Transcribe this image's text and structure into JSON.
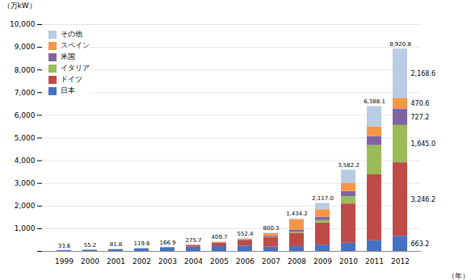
{
  "chart_data": {
    "type": "bar",
    "stacked": true,
    "categories": [
      "1999",
      "2000",
      "2001",
      "2002",
      "2003",
      "2004",
      "2005",
      "2006",
      "2007",
      "2008",
      "2009",
      "2010",
      "2011",
      "2012"
    ],
    "series": [
      {
        "name": "日本",
        "color": "#4472c4",
        "values": [
          33.6,
          55.2,
          81.8,
          119.6,
          166.9,
          193.0,
          214.0,
          237.0,
          193.0,
          210.0,
          279.0,
          363.0,
          469.0,
          663.2
        ]
      },
      {
        "name": "ドイツ",
        "color": "#be4b48",
        "values": [
          0.0,
          0.0,
          0.0,
          0.0,
          0.0,
          69.8,
          153.0,
          255.0,
          424.0,
          594.0,
          977.0,
          1730.0,
          2913.0,
          3246.2
        ]
      },
      {
        "name": "イタリア",
        "color": "#9bbb59",
        "values": [
          0.0,
          0.0,
          0.0,
          0.0,
          0.0,
          2.0,
          4.0,
          10.0,
          19.0,
          43.0,
          105.0,
          319.0,
          1289.0,
          1645.0
        ]
      },
      {
        "name": "米国",
        "color": "#8064a2",
        "values": [
          0.0,
          0.0,
          0.0,
          0.0,
          0.0,
          6.0,
          13.0,
          17.0,
          48.0,
          99.0,
          150.0,
          231.0,
          398.0,
          727.2
        ]
      },
      {
        "name": "スペイン",
        "color": "#f79646",
        "values": [
          0.0,
          0.0,
          0.0,
          0.0,
          0.0,
          4.0,
          20.0,
          25.0,
          100.0,
          450.0,
          330.0,
          370.0,
          430.0,
          470.6
        ]
      },
      {
        "name": "その他",
        "color": "#b8cce4",
        "values": [
          0.0,
          0.0,
          0.0,
          0.0,
          0.0,
          0.9,
          5.7,
          8.4,
          16.3,
          38.2,
          276.0,
          569.2,
          889.1,
          2168.6
        ]
      }
    ],
    "totals": {
      "values": [
        33.6,
        55.2,
        81.8,
        119.6,
        166.9,
        275.7,
        409.7,
        552.4,
        800.3,
        1434.2,
        2117.0,
        3582.2,
        6388.1,
        8920.8
      ],
      "value_labels": [
        "33.6",
        "55.2",
        "81.8",
        "119.6",
        "166.9",
        "275.7",
        "409.7",
        "552.4",
        "800.3",
        "1,434.2",
        "2,117.0",
        "3,582.2",
        "6,388.1",
        "8,920.8"
      ]
    },
    "annotations": [
      {
        "category": "2012",
        "series": "日本",
        "value": 663.2,
        "label": "663.2"
      },
      {
        "category": "2012",
        "series": "ドイツ",
        "value": 3246.2,
        "label": "3,246.2"
      },
      {
        "category": "2012",
        "series": "イタリア",
        "value": 1645.0,
        "label": "1,645.0"
      },
      {
        "category": "2012",
        "series": "米国",
        "value": 727.2,
        "label": "727.2"
      },
      {
        "category": "2012",
        "series": "スペイン",
        "value": 470.6,
        "label": "470.6"
      },
      {
        "category": "2012",
        "series": "その他",
        "value": 2168.6,
        "label": "2,168.6"
      }
    ],
    "ylabel": "（万kW）",
    "xlabel": "（年）",
    "ylim": [
      0,
      10000
    ],
    "yticks": [
      {
        "value": 0,
        "label": ""
      },
      {
        "value": 1000,
        "label": "1,000"
      },
      {
        "value": 2000,
        "label": "2,000"
      },
      {
        "value": 3000,
        "label": "3,000"
      },
      {
        "value": 4000,
        "label": "4,000"
      },
      {
        "value": 5000,
        "label": "5,000"
      },
      {
        "value": 6000,
        "label": "6,000"
      },
      {
        "value": 7000,
        "label": "7,000"
      },
      {
        "value": 8000,
        "label": "8,000"
      },
      {
        "value": 9000,
        "label": "9,000"
      },
      {
        "value": 10000,
        "label": "10,000"
      }
    ],
    "grid": true,
    "legend": "upper left"
  }
}
